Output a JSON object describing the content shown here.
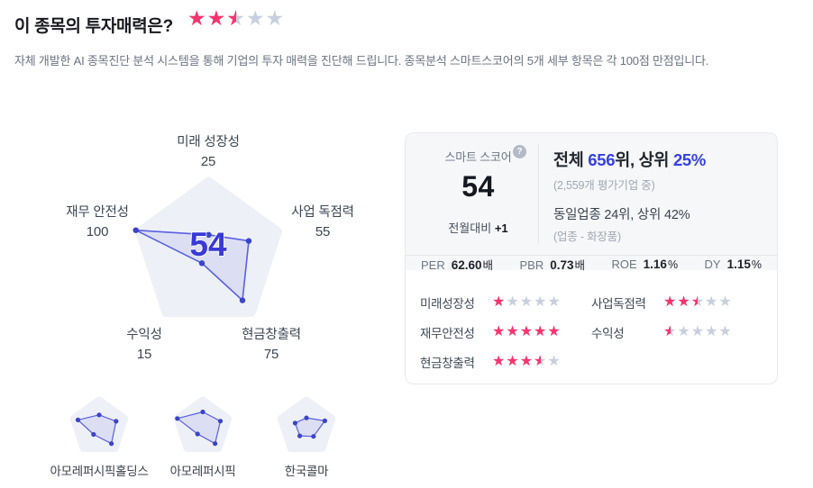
{
  "colors": {
    "accent_blue": "#3540e2",
    "radar_score_blue": "#3a39d8",
    "star_filled": "#f8346e",
    "star_empty": "#c7d0dc",
    "pentagon_bg": "#eef0f7",
    "polygon_stroke": "#5a5fe0",
    "polygon_fill": "rgba(90,95,224,0.12)",
    "dot_fill": "#3b44c8"
  },
  "header": {
    "title": "이 종목의 투자매력은?",
    "rating": 2.5,
    "subtitle": "자체 개발한 AI 종목진단 분석 시스템을 통해 기업의 투자 매력을 진단해 드립니다. 종목분석 스마트스코어의 5개 세부 항목은 각 100점 만점입니다."
  },
  "chart_data": {
    "type": "radar",
    "max": 100,
    "axis_order": "top, right, bottom-right, bottom-left, left",
    "axis_points": [
      {
        "name": "미래 성장성",
        "value": 25
      },
      {
        "name": "사업 독점력",
        "value": 55
      },
      {
        "name": "현금창출력",
        "value": 75
      },
      {
        "name": "수익성",
        "value": 15
      },
      {
        "name": "재무 안전성",
        "value": 100
      }
    ],
    "center_score": "54",
    "peers": [
      {
        "name": "아모레퍼시픽홀딩스",
        "values": [
          40,
          60,
          70,
          32,
          75
        ]
      },
      {
        "name": "아모레퍼시픽",
        "values": [
          50,
          62,
          70,
          30,
          90
        ]
      },
      {
        "name": "한국콜마",
        "values": [
          30,
          65,
          40,
          38,
          40
        ]
      }
    ]
  },
  "score_panel": {
    "score_label": "스마트 스코어",
    "help": "?",
    "score": "54",
    "mom_label": "전월대비",
    "mom_value": "+1",
    "rank": {
      "prefix": "전체 ",
      "rank": "656",
      "mid": "위, 상위 ",
      "percent": "25%"
    },
    "rank_sub": "(2,559개 평가기업 중)",
    "industry_line": "동일업종 24위, 상위 42%",
    "industry_sub": "(업종 - 화장품)",
    "metrics": [
      {
        "label": "PER",
        "value": "62.60",
        "suffix": "배"
      },
      {
        "label": "PBR",
        "value": "0.73",
        "suffix": "배"
      },
      {
        "label": "ROE",
        "value": "1.16",
        "suffix": "%"
      },
      {
        "label": "DY",
        "value": "1.15",
        "suffix": "%"
      }
    ]
  },
  "ratings": [
    {
      "label": "미래성장성",
      "stars": 1
    },
    {
      "label": "사업독점력",
      "stars": 2.5
    },
    {
      "label": "재무안전성",
      "stars": 5
    },
    {
      "label": "수익성",
      "stars": 0.5
    },
    {
      "label": "현금창출력",
      "stars": 3.5
    }
  ]
}
